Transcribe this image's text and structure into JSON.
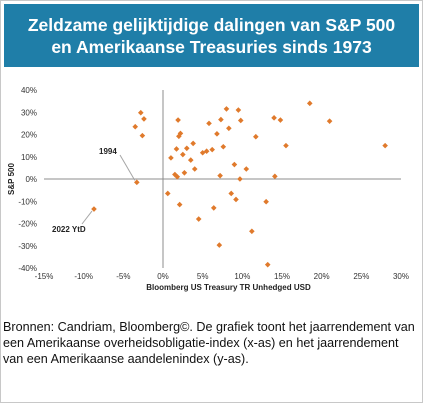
{
  "title": {
    "line1": "Zeldzame gelijktijdige dalingen van S&P 500",
    "line2": "en Amerikaanse Treasuries sinds 1973"
  },
  "caption": "Bronnen: Candriam, Bloomberg©. De grafiek toont het jaarrendement van een Amerikaanse overheidsobligatie-index (x-as) en het jaarrendement van een Amerikaanse aandelenindex (y-as).",
  "colors": {
    "banner": "#1f7ea8",
    "marker": "#e07a2c",
    "axis": "#8c8c8c",
    "arrow": "#a6a6a6"
  },
  "chart_data": {
    "type": "scatter",
    "xlabel": "Bloomberg US Treasury TR Unhedged USD",
    "ylabel": "S&P 500",
    "xlim": [
      -15,
      30
    ],
    "ylim": [
      -40,
      40
    ],
    "xticks": [
      -15,
      -10,
      -5,
      0,
      5,
      10,
      15,
      20,
      25,
      30
    ],
    "xtick_labels": [
      "-15%",
      "-10%",
      "-5%",
      "0%",
      "5%",
      "10%",
      "15%",
      "20%",
      "25%",
      "30%"
    ],
    "yticks": [
      40,
      30,
      20,
      10,
      0,
      -10,
      -20,
      -30,
      -40
    ],
    "ytick_labels": [
      "40%",
      "30%",
      "20%",
      "10%",
      "0%",
      "-10%",
      "-20%",
      "-30%",
      "-40%"
    ],
    "grid": false,
    "points": [
      {
        "x": -8.7,
        "y": -13.5
      },
      {
        "x": -3.3,
        "y": -1.5
      },
      {
        "x": -3.5,
        "y": 23.5
      },
      {
        "x": -2.8,
        "y": 29.8
      },
      {
        "x": -2.4,
        "y": 27.0
      },
      {
        "x": -2.6,
        "y": 19.5
      },
      {
        "x": 0.6,
        "y": -6.5
      },
      {
        "x": 1.0,
        "y": 9.5
      },
      {
        "x": 1.5,
        "y": 2.0
      },
      {
        "x": 1.7,
        "y": 13.5
      },
      {
        "x": 1.8,
        "y": 1.0
      },
      {
        "x": 1.9,
        "y": 26.5
      },
      {
        "x": 2.0,
        "y": 19.2
      },
      {
        "x": 2.2,
        "y": 20.5
      },
      {
        "x": 2.5,
        "y": 11.0
      },
      {
        "x": 2.7,
        "y": 2.8
      },
      {
        "x": 2.1,
        "y": -11.5
      },
      {
        "x": 3.0,
        "y": 13.8
      },
      {
        "x": 3.5,
        "y": 8.5
      },
      {
        "x": 3.8,
        "y": 16.0
      },
      {
        "x": 4.0,
        "y": 4.5
      },
      {
        "x": 4.5,
        "y": -18.0
      },
      {
        "x": 5.0,
        "y": 11.8
      },
      {
        "x": 5.5,
        "y": 12.5
      },
      {
        "x": 5.8,
        "y": 25.0
      },
      {
        "x": 6.2,
        "y": 13.2
      },
      {
        "x": 6.4,
        "y": -13.0
      },
      {
        "x": 6.8,
        "y": 20.3
      },
      {
        "x": 7.1,
        "y": -29.7
      },
      {
        "x": 7.3,
        "y": 26.7
      },
      {
        "x": 7.6,
        "y": 14.5
      },
      {
        "x": 7.2,
        "y": 1.5
      },
      {
        "x": 8.0,
        "y": 31.5
      },
      {
        "x": 8.3,
        "y": 22.8
      },
      {
        "x": 8.6,
        "y": -6.5
      },
      {
        "x": 9.0,
        "y": 6.5
      },
      {
        "x": 9.2,
        "y": -9.2
      },
      {
        "x": 9.5,
        "y": 31.0
      },
      {
        "x": 9.7,
        "y": 0.0
      },
      {
        "x": 9.8,
        "y": 26.3
      },
      {
        "x": 10.5,
        "y": 4.5
      },
      {
        "x": 11.2,
        "y": -23.5
      },
      {
        "x": 11.7,
        "y": 19.0
      },
      {
        "x": 13.0,
        "y": -10.2
      },
      {
        "x": 13.2,
        "y": -38.5
      },
      {
        "x": 14.0,
        "y": 27.5
      },
      {
        "x": 14.1,
        "y": 1.2
      },
      {
        "x": 14.8,
        "y": 26.5
      },
      {
        "x": 15.5,
        "y": 15.0
      },
      {
        "x": 18.5,
        "y": 34.0
      },
      {
        "x": 21.0,
        "y": 26.0
      },
      {
        "x": 28.0,
        "y": 15.0
      }
    ],
    "annotations": [
      {
        "text": "1994",
        "x": -3.3,
        "y": -1.5
      },
      {
        "text": "2022 YtD",
        "x": -8.7,
        "y": -13.5
      }
    ]
  }
}
